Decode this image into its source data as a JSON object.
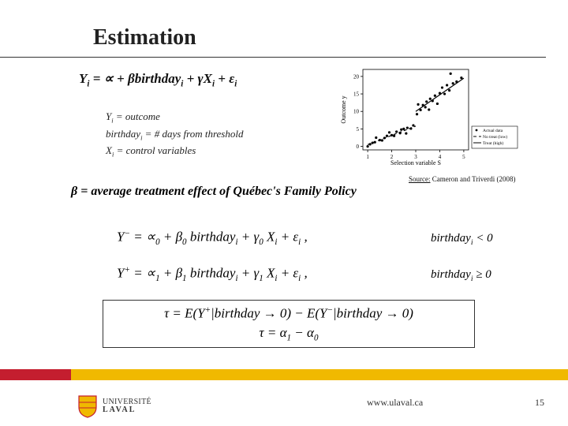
{
  "title": "Estimation",
  "eq1": "Y<sub>i</sub> = ∝ + <i>βbirthday</i><sub>i</sub> + γX<sub>i</sub> + ε<sub>i</sub>",
  "defs": {
    "l1": "Y<sub>i</sub> = outcome",
    "l2": "birthday<sub>i</sub> = # days from threshold",
    "l3": "X<sub>i</sub> = control variables"
  },
  "source_label": "Source:",
  "source_text": " Cameron and Triverdi (2008)",
  "beta_line": "β = average treatment effect of Québec's Family Policy",
  "eq_minus": "Y<sup>−</sup> = ∝<sub>0</sub> + β<sub>0</sub> birthday<sub>i</sub> + γ<sub>0</sub> X<sub>i</sub> + ε<sub>i</sub> ,",
  "eq_plus": "Y<sup>+</sup> = ∝<sub>1</sub> + β<sub>1</sub> birthday<sub>i</sub> + γ<sub>1</sub> X<sub>i</sub> + ε<sub>i</sub> ,",
  "cond_minus": "birthday<sub>i</sub> &lt; 0",
  "cond_plus": "birthday<sub>i</sub> ≥ 0",
  "tau1": "τ = E(Y<sup>+</sup>|birthday → 0) − E(Y<sup>−</sup>|birthday → 0)",
  "tau2": "τ = α<sub>1</sub> − α<sub>0</sub>",
  "footer_url": "www.ulaval.ca",
  "page_num": "15",
  "logo_top": "UNIVERSITÉ",
  "logo_bottom": "LAVAL",
  "chart": {
    "type": "scatter",
    "xlabel": "Selection variable S",
    "ylabel": "Outcome y",
    "xlim": [
      0.8,
      5.2
    ],
    "ylim": [
      -1,
      22
    ],
    "xtick": [
      1,
      2,
      3,
      4,
      5
    ],
    "ytick": [
      0,
      5,
      10,
      15,
      20
    ],
    "threshold_x": 3,
    "points_low": [
      [
        1.0,
        0.0
      ],
      [
        1.1,
        0.6
      ],
      [
        1.2,
        1.0
      ],
      [
        1.3,
        1.2
      ],
      [
        1.35,
        2.5
      ],
      [
        1.5,
        1.8
      ],
      [
        1.6,
        1.7
      ],
      [
        1.7,
        2.4
      ],
      [
        1.8,
        3.0
      ],
      [
        1.9,
        4.0
      ],
      [
        2.0,
        3.2
      ],
      [
        2.1,
        3.0
      ],
      [
        2.2,
        4.2
      ],
      [
        2.35,
        3.8
      ],
      [
        2.4,
        4.8
      ],
      [
        2.5,
        5.0
      ],
      [
        2.6,
        3.7
      ],
      [
        2.65,
        5.3
      ],
      [
        2.8,
        5.1
      ],
      [
        2.9,
        6.0
      ]
    ],
    "points_high": [
      [
        3.05,
        9.2
      ],
      [
        3.1,
        12.0
      ],
      [
        3.2,
        10.4
      ],
      [
        3.3,
        11.8
      ],
      [
        3.4,
        11.2
      ],
      [
        3.45,
        12.8
      ],
      [
        3.55,
        10.5
      ],
      [
        3.6,
        13.6
      ],
      [
        3.7,
        13.0
      ],
      [
        3.8,
        14.5
      ],
      [
        3.9,
        12.2
      ],
      [
        4.0,
        15.2
      ],
      [
        4.1,
        16.8
      ],
      [
        4.2,
        15.0
      ],
      [
        4.3,
        17.5
      ],
      [
        4.4,
        16.0
      ],
      [
        4.45,
        20.8
      ],
      [
        4.55,
        18.0
      ],
      [
        4.7,
        18.5
      ],
      [
        4.9,
        19.6
      ]
    ],
    "line_low": {
      "x": [
        1.0,
        3.0
      ],
      "y": [
        0.5,
        5.8
      ]
    },
    "line_high": {
      "x": [
        3.0,
        5.0
      ],
      "y": [
        10.0,
        19.5
      ]
    },
    "legend": [
      {
        "label": "Actual data",
        "type": "marker"
      },
      {
        "label": "No treat (low)",
        "type": "dash"
      },
      {
        "label": "Treat (high)",
        "type": "solid"
      }
    ],
    "colors": {
      "marker": "#000000",
      "line": "#000000",
      "axis": "#000000",
      "label_fontsize": 8,
      "tick_fontsize": 7,
      "marker_size": 1.6,
      "line_width": 1.2,
      "dash": "4 3",
      "bg": "#ffffff"
    }
  },
  "accent": {
    "red": "#c41e2f",
    "yellow": "#f0b900"
  }
}
